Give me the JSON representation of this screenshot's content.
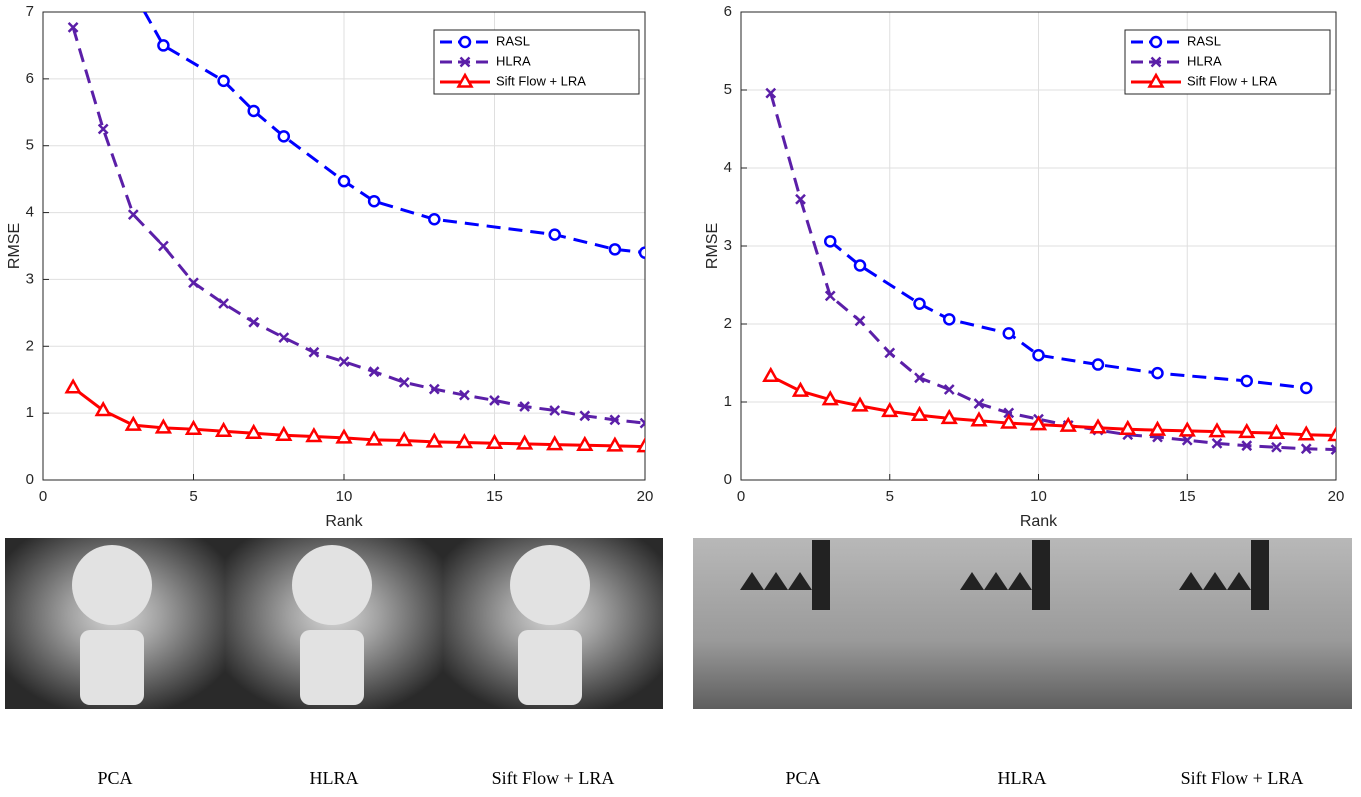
{
  "chart_data": [
    {
      "type": "line",
      "xlabel": "Rank",
      "ylabel": "RMSE",
      "xlim": [
        0,
        20
      ],
      "ylim": [
        0,
        7
      ],
      "xticks": [
        0,
        5,
        10,
        15,
        20
      ],
      "yticks": [
        0,
        1,
        2,
        3,
        4,
        5,
        6,
        7
      ],
      "grid": true,
      "legend": "upper right",
      "series": [
        {
          "name": "RASL",
          "color": "#0000ff",
          "marker": "o",
          "dash": "dashed",
          "x": [
            3,
            4,
            6,
            7,
            8,
            10,
            11,
            13,
            17,
            19,
            20
          ],
          "values": [
            7.3,
            6.5,
            5.97,
            5.52,
            5.14,
            4.47,
            4.17,
            3.9,
            3.67,
            3.45,
            3.4
          ]
        },
        {
          "name": "HLRA",
          "color": "#5b1fa8",
          "marker": "x",
          "dash": "dashed",
          "x": [
            1,
            2,
            3,
            4,
            5,
            6,
            7,
            8,
            9,
            10,
            11,
            12,
            13,
            14,
            15,
            16,
            17,
            18,
            19,
            20
          ],
          "values": [
            6.77,
            5.25,
            3.97,
            3.5,
            2.95,
            2.64,
            2.36,
            2.13,
            1.91,
            1.77,
            1.62,
            1.46,
            1.36,
            1.27,
            1.19,
            1.1,
            1.04,
            0.96,
            0.9,
            0.85
          ]
        },
        {
          "name": "Sift Flow + LRA",
          "color": "#ff0000",
          "marker": "^",
          "dash": "solid",
          "x": [
            1,
            2,
            3,
            4,
            5,
            6,
            7,
            8,
            9,
            10,
            11,
            12,
            13,
            14,
            15,
            16,
            17,
            18,
            19,
            20
          ],
          "values": [
            1.38,
            1.04,
            0.82,
            0.78,
            0.76,
            0.73,
            0.7,
            0.67,
            0.65,
            0.63,
            0.6,
            0.59,
            0.57,
            0.56,
            0.55,
            0.54,
            0.53,
            0.52,
            0.51,
            0.5
          ]
        }
      ]
    },
    {
      "type": "line",
      "xlabel": "Rank",
      "ylabel": "RMSE",
      "xlim": [
        0,
        20
      ],
      "ylim": [
        0,
        6
      ],
      "xticks": [
        0,
        5,
        10,
        15,
        20
      ],
      "yticks": [
        0,
        1,
        2,
        3,
        4,
        5,
        6
      ],
      "grid": true,
      "legend": "upper right",
      "series": [
        {
          "name": "RASL",
          "color": "#0000ff",
          "marker": "o",
          "dash": "dashed",
          "x": [
            3,
            4,
            6,
            7,
            9,
            10,
            12,
            14,
            17,
            19
          ],
          "values": [
            3.06,
            2.75,
            2.26,
            2.06,
            1.88,
            1.6,
            1.48,
            1.37,
            1.27,
            1.18
          ]
        },
        {
          "name": "HLRA",
          "color": "#5b1fa8",
          "marker": "x",
          "dash": "dashed",
          "x": [
            1,
            2,
            3,
            4,
            5,
            6,
            7,
            8,
            9,
            10,
            11,
            12,
            13,
            14,
            15,
            16,
            17,
            18,
            19,
            20
          ],
          "values": [
            4.96,
            3.6,
            2.36,
            2.04,
            1.63,
            1.31,
            1.16,
            0.98,
            0.86,
            0.78,
            0.7,
            0.64,
            0.58,
            0.55,
            0.51,
            0.47,
            0.44,
            0.42,
            0.4,
            0.39
          ]
        },
        {
          "name": "Sift Flow + LRA",
          "color": "#ff0000",
          "marker": "^",
          "dash": "solid",
          "x": [
            1,
            2,
            3,
            4,
            5,
            6,
            7,
            8,
            9,
            10,
            11,
            12,
            13,
            14,
            15,
            16,
            17,
            18,
            19,
            20
          ],
          "values": [
            1.33,
            1.14,
            1.03,
            0.95,
            0.88,
            0.83,
            0.79,
            0.76,
            0.73,
            0.71,
            0.69,
            0.67,
            0.65,
            0.64,
            0.63,
            0.62,
            0.61,
            0.6,
            0.58,
            0.57
          ]
        }
      ]
    }
  ],
  "captions": [
    [
      "PCA",
      "HLRA",
      "Sift Flow + LRA"
    ],
    [
      "PCA",
      "HLRA",
      "Sift Flow + LRA"
    ]
  ]
}
